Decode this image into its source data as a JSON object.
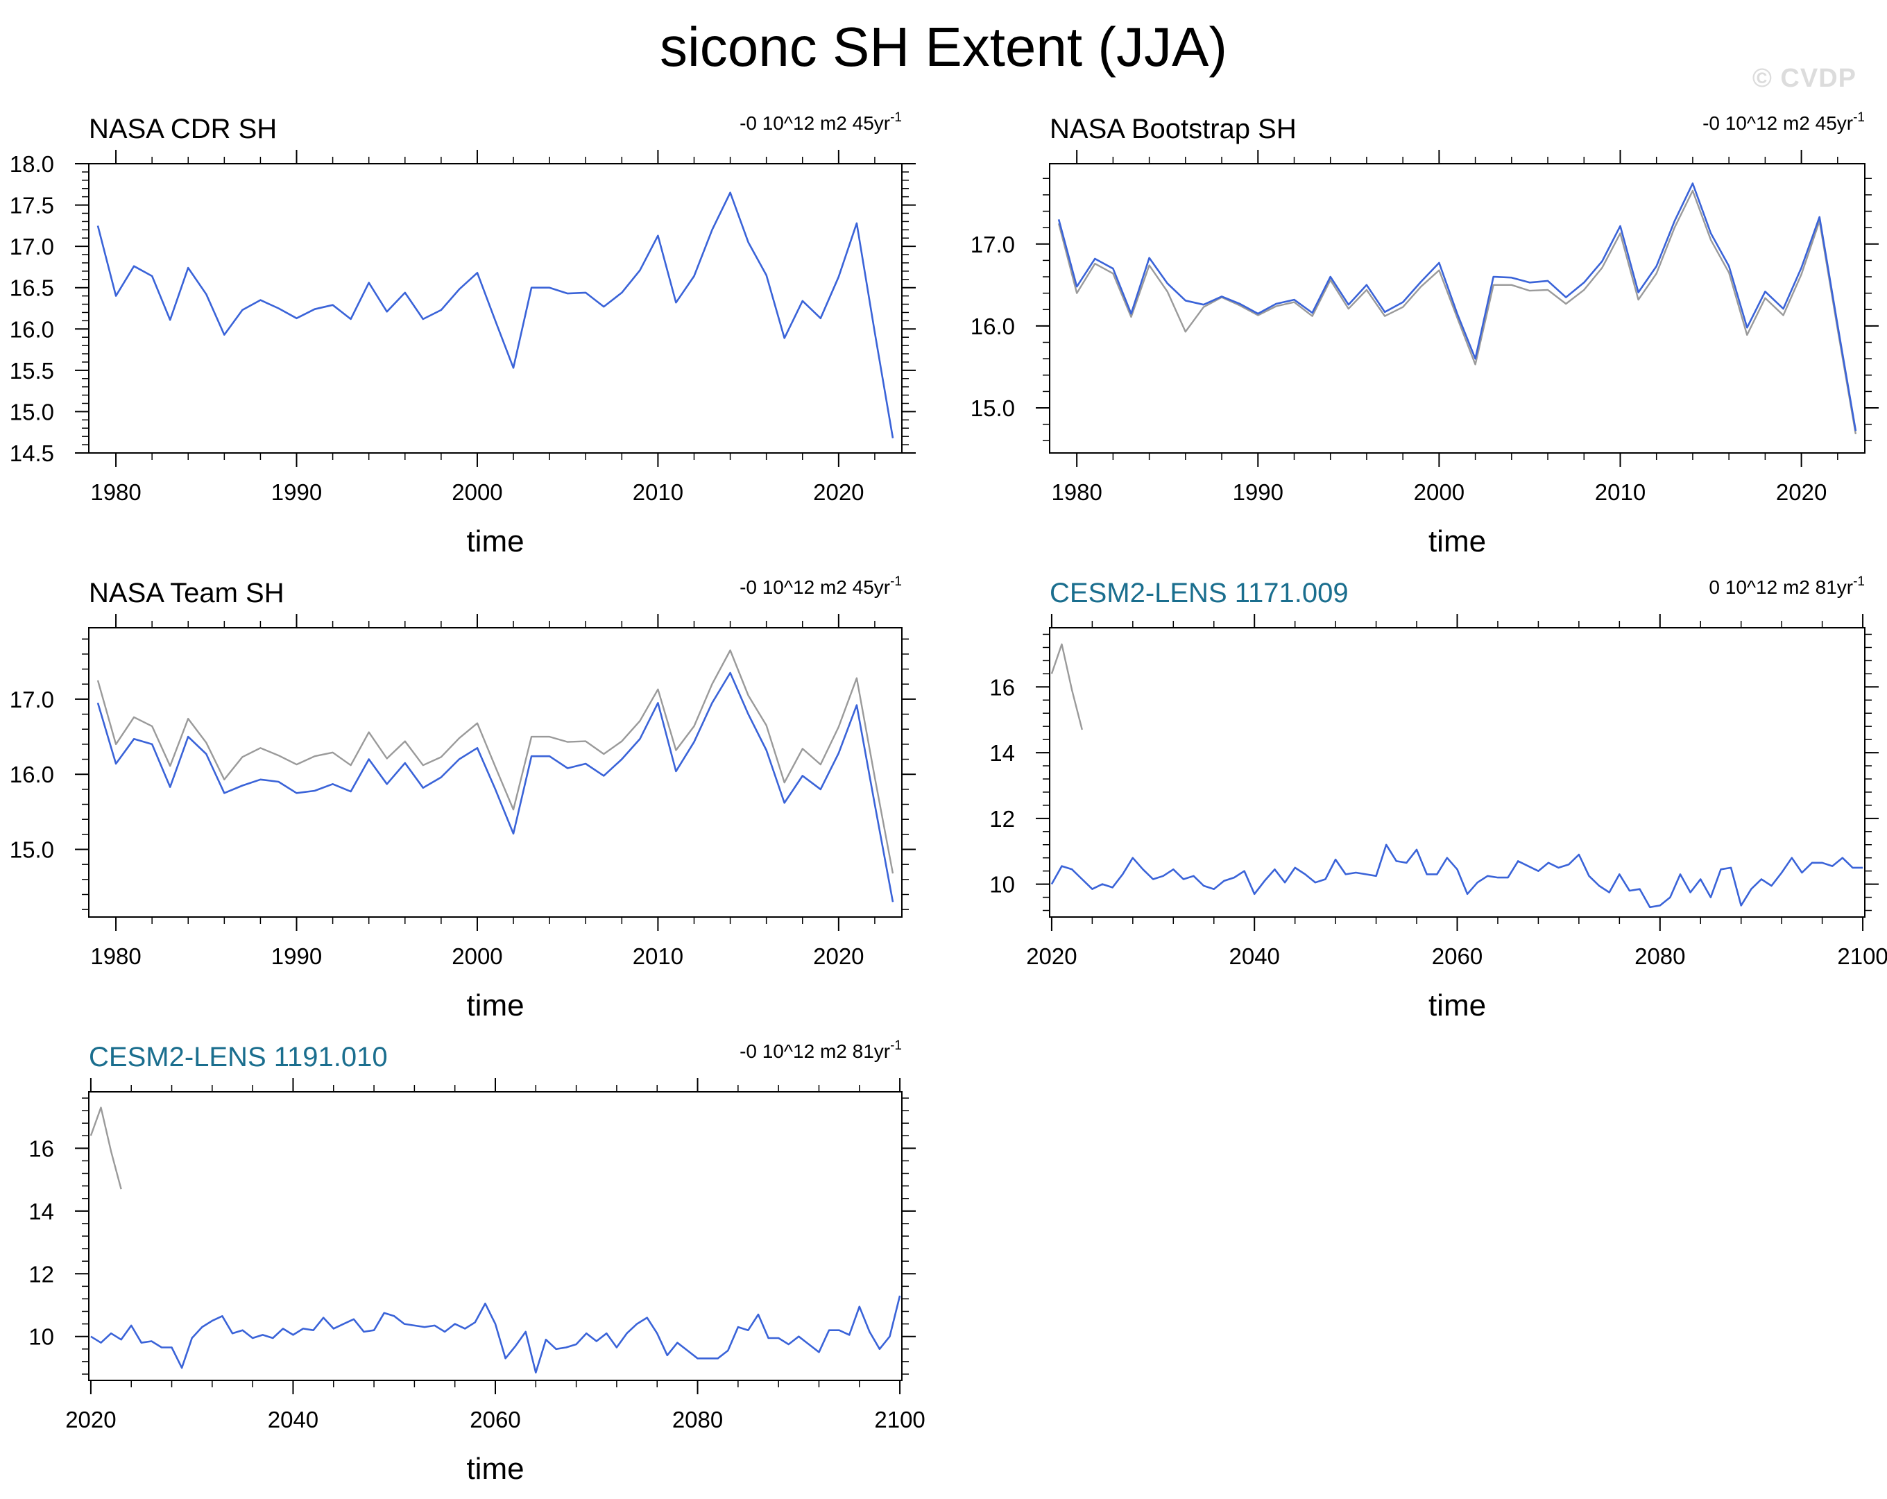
{
  "title": "siconc SH Extent (JJA)",
  "watermark": "© CVDP",
  "colors": {
    "series_main": "#3a63d8",
    "series_ref": "#9a9a9a",
    "model_title": "#1a6e8e",
    "obs_title": "#000000"
  },
  "chart_data": [
    {
      "type": "line",
      "title": "NASA CDR SH",
      "title_color": "#000000",
      "trend_label": "-0 10^12 m2 45yr",
      "trend_sup": "-1",
      "xlabel": "time",
      "ylabel": "",
      "xlim": [
        1978.5,
        2023.5
      ],
      "ylim": [
        14.5,
        18.0
      ],
      "xticks": [
        1980,
        1990,
        2000,
        2010,
        2020
      ],
      "xtick_labels": [
        "1980",
        "1990",
        "2000",
        "2010",
        "2020"
      ],
      "yticks": [
        14.5,
        15.0,
        15.5,
        16.0,
        16.5,
        17.0,
        17.5,
        18.0
      ],
      "ytick_labels": [
        "14.5",
        "15.0",
        "15.5",
        "16.0",
        "16.5",
        "17.0",
        "17.5",
        "18.0"
      ],
      "series": [
        {
          "role": "main",
          "color": "#3a63d8",
          "x_start": 1979,
          "values": [
            17.25,
            16.4,
            16.76,
            16.64,
            16.11,
            16.74,
            16.42,
            15.93,
            16.23,
            16.35,
            16.25,
            16.13,
            16.24,
            16.29,
            16.12,
            16.56,
            16.21,
            16.44,
            16.12,
            16.23,
            16.48,
            16.68,
            16.1,
            15.53,
            16.5,
            16.5,
            16.43,
            16.44,
            16.27,
            16.44,
            16.71,
            17.13,
            16.32,
            16.64,
            17.2,
            17.65,
            17.05,
            16.65,
            15.89,
            16.34,
            16.13,
            16.63,
            17.28,
            15.96,
            14.68
          ]
        }
      ]
    },
    {
      "type": "line",
      "title": "NASA Bootstrap SH",
      "title_color": "#000000",
      "trend_label": "-0 10^12 m2 45yr",
      "trend_sup": "-1",
      "xlabel": "time",
      "ylabel": "",
      "xlim": [
        1978.5,
        2023.5
      ],
      "ylim": [
        14.45,
        17.98
      ],
      "xticks": [
        1980,
        1990,
        2000,
        2010,
        2020
      ],
      "xtick_labels": [
        "1980",
        "1990",
        "2000",
        "2010",
        "2020"
      ],
      "yticks": [
        15.0,
        16.0,
        17.0
      ],
      "ytick_labels": [
        "15.0",
        "16.0",
        "17.0"
      ],
      "series": [
        {
          "role": "ref",
          "color": "#9a9a9a",
          "x_start": 1979,
          "values": [
            17.25,
            16.4,
            16.76,
            16.64,
            16.11,
            16.74,
            16.42,
            15.93,
            16.23,
            16.35,
            16.25,
            16.13,
            16.24,
            16.29,
            16.12,
            16.56,
            16.21,
            16.44,
            16.12,
            16.23,
            16.48,
            16.68,
            16.1,
            15.53,
            16.5,
            16.5,
            16.43,
            16.44,
            16.27,
            16.44,
            16.71,
            17.13,
            16.32,
            16.64,
            17.2,
            17.65,
            17.05,
            16.65,
            15.89,
            16.34,
            16.13,
            16.63,
            17.28,
            15.96,
            14.68
          ]
        },
        {
          "role": "main",
          "color": "#3a63d8",
          "x_start": 1979,
          "values": [
            17.3,
            16.48,
            16.82,
            16.7,
            16.15,
            16.83,
            16.52,
            16.31,
            16.26,
            16.36,
            16.27,
            16.15,
            16.27,
            16.32,
            16.16,
            16.6,
            16.26,
            16.5,
            16.17,
            16.29,
            16.54,
            16.77,
            16.15,
            15.6,
            16.6,
            16.59,
            16.53,
            16.55,
            16.35,
            16.53,
            16.79,
            17.22,
            16.41,
            16.73,
            17.28,
            17.74,
            17.13,
            16.73,
            15.98,
            16.42,
            16.21,
            16.71,
            17.33,
            16.01,
            14.72
          ]
        }
      ]
    },
    {
      "type": "line",
      "title": "NASA Team SH",
      "title_color": "#000000",
      "trend_label": "-0 10^12 m2 45yr",
      "trend_sup": "-1",
      "xlabel": "time",
      "ylabel": "",
      "xlim": [
        1978.5,
        2023.5
      ],
      "ylim": [
        14.1,
        17.95
      ],
      "xticks": [
        1980,
        1990,
        2000,
        2010,
        2020
      ],
      "xtick_labels": [
        "1980",
        "1990",
        "2000",
        "2010",
        "2020"
      ],
      "yticks": [
        15.0,
        16.0,
        17.0
      ],
      "ytick_labels": [
        "15.0",
        "16.0",
        "17.0"
      ],
      "series": [
        {
          "role": "ref",
          "color": "#9a9a9a",
          "x_start": 1979,
          "values": [
            17.25,
            16.4,
            16.76,
            16.64,
            16.11,
            16.74,
            16.42,
            15.93,
            16.23,
            16.35,
            16.25,
            16.13,
            16.24,
            16.29,
            16.12,
            16.56,
            16.21,
            16.44,
            16.12,
            16.23,
            16.48,
            16.68,
            16.1,
            15.53,
            16.5,
            16.5,
            16.43,
            16.44,
            16.27,
            16.44,
            16.71,
            17.13,
            16.32,
            16.64,
            17.2,
            17.65,
            17.05,
            16.65,
            15.89,
            16.34,
            16.13,
            16.63,
            17.28,
            15.96,
            14.68
          ]
        },
        {
          "role": "main",
          "color": "#3a63d8",
          "x_start": 1979,
          "values": [
            16.95,
            16.14,
            16.47,
            16.4,
            15.83,
            16.5,
            16.27,
            15.75,
            15.85,
            15.93,
            15.9,
            15.75,
            15.78,
            15.87,
            15.77,
            16.2,
            15.87,
            16.15,
            15.82,
            15.96,
            16.2,
            16.35,
            15.8,
            15.21,
            16.24,
            16.24,
            16.08,
            16.14,
            15.98,
            16.2,
            16.47,
            16.95,
            16.04,
            16.43,
            16.95,
            17.35,
            16.8,
            16.32,
            15.62,
            15.98,
            15.8,
            16.28,
            16.92,
            15.6,
            14.3
          ]
        }
      ]
    },
    {
      "type": "line",
      "title": "CESM2-LENS 1171.009",
      "title_color": "#1a6e8e",
      "trend_label": "0 10^12 m2 81yr",
      "trend_sup": "-1",
      "xlabel": "time",
      "ylabel": "",
      "xlim": [
        2019.8,
        2100.2
      ],
      "ylim": [
        9.0,
        17.8
      ],
      "xticks": [
        2020,
        2040,
        2060,
        2080,
        2100
      ],
      "xtick_labels": [
        "2020",
        "2040",
        "2060",
        "2080",
        "2100"
      ],
      "yticks": [
        10,
        12,
        14,
        16
      ],
      "ytick_labels": [
        "10",
        "12",
        "14",
        "16"
      ],
      "series": [
        {
          "role": "ref",
          "color": "#9a9a9a",
          "x_start": 2020,
          "values": [
            16.4,
            17.3,
            15.9,
            14.7
          ]
        },
        {
          "role": "main",
          "color": "#3a63d8",
          "x_start": 2020,
          "values": [
            10.0,
            10.55,
            10.45,
            10.15,
            9.85,
            10.0,
            9.9,
            10.3,
            10.8,
            10.45,
            10.15,
            10.25,
            10.45,
            10.15,
            10.25,
            9.95,
            9.85,
            10.1,
            10.2,
            10.4,
            9.7,
            10.1,
            10.45,
            10.05,
            10.5,
            10.3,
            10.05,
            10.15,
            10.75,
            10.3,
            10.35,
            10.3,
            10.25,
            11.2,
            10.7,
            10.65,
            11.05,
            10.3,
            10.3,
            10.8,
            10.45,
            9.7,
            10.05,
            10.25,
            10.2,
            10.2,
            10.7,
            10.55,
            10.4,
            10.65,
            10.5,
            10.6,
            10.9,
            10.25,
            9.95,
            9.75,
            10.3,
            9.8,
            9.85,
            9.3,
            9.35,
            9.6,
            10.3,
            9.75,
            10.15,
            9.6,
            10.45,
            10.5,
            9.35,
            9.85,
            10.15,
            9.95,
            10.35,
            10.8,
            10.35,
            10.65,
            10.65,
            10.55,
            10.8,
            10.5,
            10.5
          ]
        }
      ]
    },
    {
      "type": "line",
      "title": "CESM2-LENS 1191.010",
      "title_color": "#1a6e8e",
      "trend_label": "-0 10^12 m2 81yr",
      "trend_sup": "-1",
      "xlabel": "time",
      "ylabel": "",
      "xlim": [
        2019.8,
        2100.2
      ],
      "ylim": [
        8.6,
        17.8
      ],
      "xticks": [
        2020,
        2040,
        2060,
        2080,
        2100
      ],
      "xtick_labels": [
        "2020",
        "2040",
        "2060",
        "2080",
        "2100"
      ],
      "yticks": [
        10,
        12,
        14,
        16
      ],
      "ytick_labels": [
        "10",
        "12",
        "14",
        "16"
      ],
      "series": [
        {
          "role": "ref",
          "color": "#9a9a9a",
          "x_start": 2020,
          "values": [
            16.4,
            17.3,
            15.9,
            14.7
          ]
        },
        {
          "role": "main",
          "color": "#3a63d8",
          "x_start": 2020,
          "values": [
            10.0,
            9.8,
            10.1,
            9.9,
            10.35,
            9.8,
            9.85,
            9.65,
            9.65,
            9.0,
            9.95,
            10.3,
            10.5,
            10.65,
            10.1,
            10.2,
            9.95,
            10.05,
            9.95,
            10.25,
            10.05,
            10.25,
            10.2,
            10.6,
            10.25,
            10.4,
            10.55,
            10.15,
            10.2,
            10.75,
            10.65,
            10.4,
            10.35,
            10.3,
            10.35,
            10.15,
            10.4,
            10.25,
            10.45,
            11.05,
            10.4,
            9.3,
            9.7,
            10.15,
            8.85,
            9.9,
            9.6,
            9.65,
            9.75,
            10.1,
            9.85,
            10.1,
            9.65,
            10.1,
            10.4,
            10.6,
            10.1,
            9.4,
            9.8,
            9.55,
            9.3,
            9.3,
            9.3,
            9.55,
            10.3,
            10.2,
            10.7,
            9.95,
            9.95,
            9.75,
            10.0,
            9.75,
            9.5,
            10.2,
            10.2,
            10.05,
            10.95,
            10.15,
            9.6,
            10.0,
            11.3
          ]
        }
      ]
    }
  ]
}
